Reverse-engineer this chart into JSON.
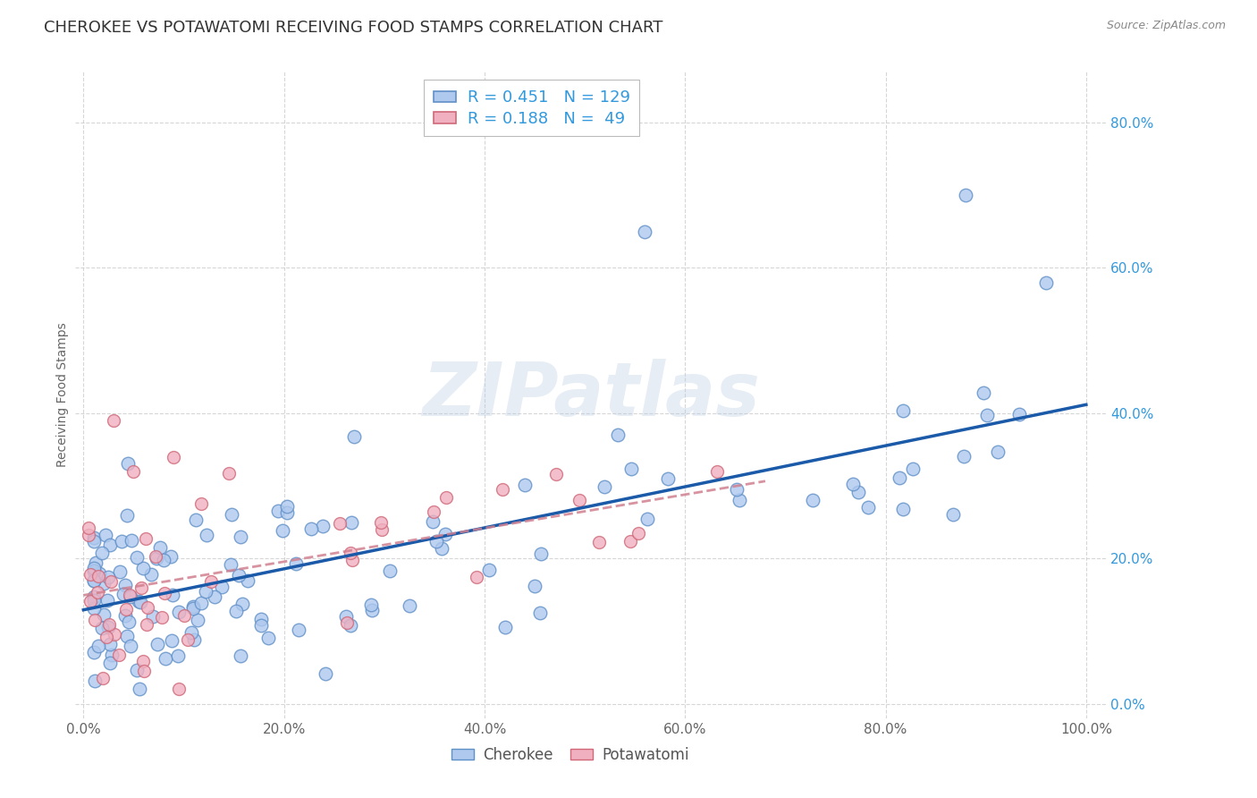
{
  "title": "CHEROKEE VS POTAWATOMI RECEIVING FOOD STAMPS CORRELATION CHART",
  "source": "Source: ZipAtlas.com",
  "ylabel": "Receiving Food Stamps",
  "cherokee_color": "#aec8ee",
  "cherokee_edge": "#6090c8",
  "potawatomi_color": "#f0b0c0",
  "potawatomi_edge": "#d06878",
  "line_cherokee": "#1a5aa8",
  "line_potawatomi": "#d08090",
  "R_cherokee": 0.451,
  "N_cherokee": 129,
  "R_potawatomi": 0.188,
  "N_potawatomi": 49,
  "watermark": "ZIPatlas",
  "background_color": "#ffffff",
  "grid_color": "#cccccc",
  "title_fontsize": 13,
  "axis_label_fontsize": 10,
  "tick_fontsize": 11,
  "ytick_color": "#3399dd",
  "xtick_color": "#666666"
}
